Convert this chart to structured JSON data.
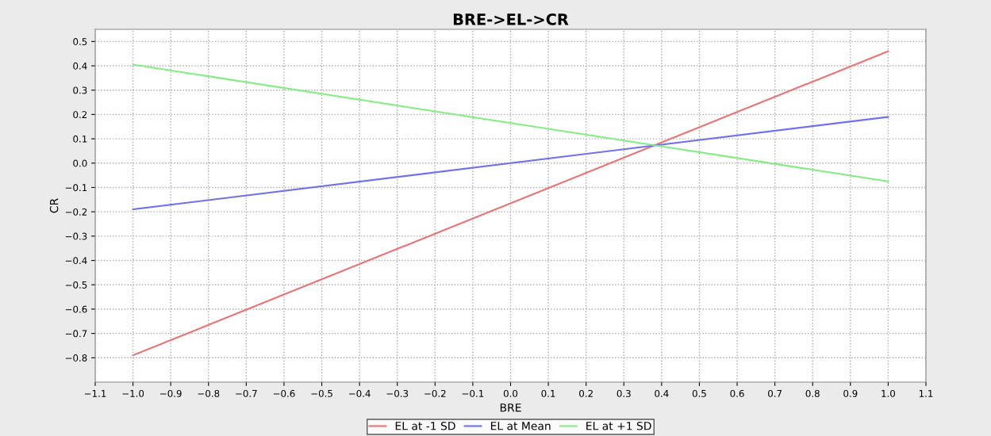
{
  "chart_data": {
    "type": "line",
    "title": "BRE->EL->CR",
    "xlabel": "BRE",
    "ylabel": "CR",
    "x": [
      -1.0,
      1.0
    ],
    "series": [
      {
        "name": "EL at -1 SD",
        "color": "#f07070",
        "values": [
          -0.79,
          0.46
        ]
      },
      {
        "name": "EL at Mean",
        "color": "#7070f0",
        "values": [
          -0.19,
          0.19
        ]
      },
      {
        "name": "EL at +1 SD",
        "color": "#80ee80",
        "values": [
          0.405,
          -0.075
        ]
      }
    ],
    "xlim": [
      -1.1,
      1.1
    ],
    "xticks": [
      -1.1,
      {
        "value": -1,
        "label": "−1.0"
      },
      -0.9,
      -0.8,
      -0.7,
      -0.6,
      -0.5,
      -0.4,
      -0.3,
      -0.2,
      -0.1,
      {
        "value": 0,
        "label": "0.0"
      },
      0.1,
      0.2,
      0.3,
      0.4,
      0.5,
      0.6,
      0.7,
      0.8,
      0.9,
      {
        "value": 1,
        "label": "1.0"
      },
      1.1
    ],
    "ylim": [
      -0.9,
      0.55
    ],
    "yticks": [
      -0.8,
      -0.7,
      -0.6,
      -0.5,
      -0.4,
      -0.3,
      -0.2,
      -0.1,
      {
        "value": 0,
        "label": "0.0"
      },
      0.1,
      0.2,
      0.3,
      0.4,
      0.5
    ],
    "grid": true,
    "legend": "bottom",
    "marker": "none",
    "line_style": "solid"
  }
}
